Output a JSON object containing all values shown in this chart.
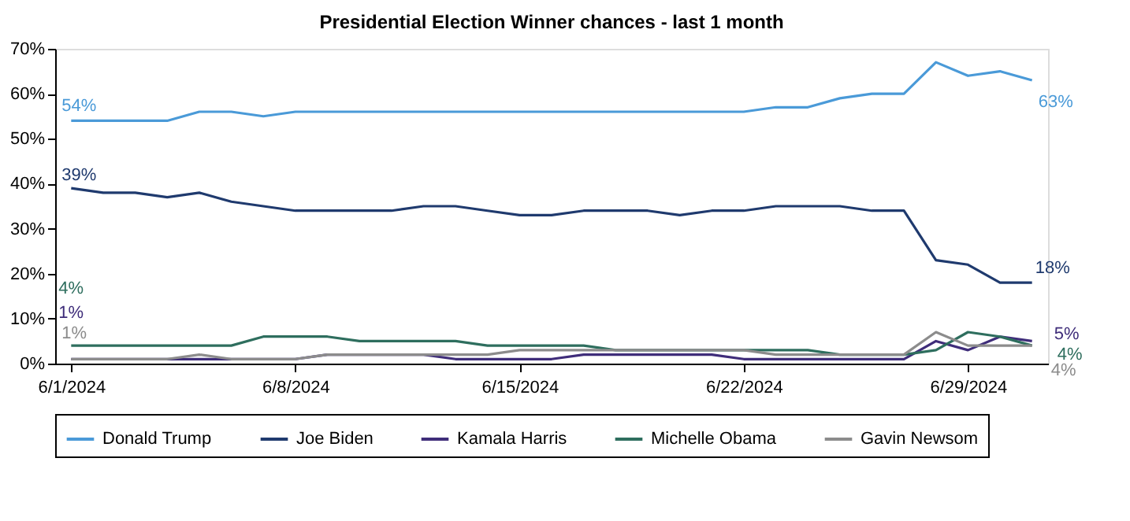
{
  "chart_data": {
    "type": "line",
    "title": "Presidential Election Winner chances - last 1 month",
    "x": [
      "2024-06-01",
      "2024-06-02",
      "2024-06-03",
      "2024-06-04",
      "2024-06-05",
      "2024-06-06",
      "2024-06-07",
      "2024-06-08",
      "2024-06-09",
      "2024-06-10",
      "2024-06-11",
      "2024-06-12",
      "2024-06-13",
      "2024-06-14",
      "2024-06-15",
      "2024-06-16",
      "2024-06-17",
      "2024-06-18",
      "2024-06-19",
      "2024-06-20",
      "2024-06-21",
      "2024-06-22",
      "2024-06-23",
      "2024-06-24",
      "2024-06-25",
      "2024-06-26",
      "2024-06-27",
      "2024-06-28",
      "2024-06-29",
      "2024-06-30",
      "2024-07-01"
    ],
    "series": [
      {
        "name": "Donald Trump",
        "color": "#4a9ad8",
        "values": [
          54,
          54,
          54,
          54,
          56,
          56,
          55,
          56,
          56,
          56,
          56,
          56,
          56,
          56,
          56,
          56,
          56,
          56,
          56,
          56,
          56,
          56,
          57,
          57,
          59,
          60,
          60,
          67,
          64,
          65,
          63
        ],
        "value_labels": [
          "54%",
          null,
          null,
          null,
          null,
          null,
          null,
          null,
          null,
          null,
          null,
          null,
          null,
          null,
          null,
          null,
          null,
          null,
          null,
          null,
          null,
          null,
          null,
          null,
          null,
          null,
          null,
          null,
          null,
          null,
          "63%"
        ]
      },
      {
        "name": "Joe Biden",
        "color": "#1f3a6e",
        "values": [
          39,
          38,
          38,
          37,
          38,
          36,
          35,
          34,
          34,
          34,
          34,
          35,
          35,
          34,
          33,
          33,
          34,
          34,
          34,
          33,
          34,
          34,
          35,
          35,
          35,
          34,
          34,
          23,
          22,
          18,
          18
        ],
        "value_labels": [
          "39%",
          null,
          null,
          null,
          null,
          null,
          null,
          null,
          null,
          null,
          null,
          null,
          null,
          null,
          null,
          null,
          null,
          null,
          null,
          null,
          null,
          null,
          null,
          null,
          null,
          null,
          null,
          null,
          null,
          null,
          "18%"
        ]
      },
      {
        "name": "Kamala Harris",
        "color": "#3f2d7a",
        "values": [
          1,
          1,
          1,
          1,
          1,
          1,
          1,
          1,
          2,
          2,
          2,
          2,
          1,
          1,
          1,
          1,
          2,
          2,
          2,
          2,
          2,
          1,
          1,
          1,
          1,
          1,
          1,
          5,
          3,
          6,
          5
        ],
        "value_labels": [
          "1%",
          null,
          null,
          null,
          null,
          null,
          null,
          null,
          null,
          null,
          null,
          null,
          null,
          null,
          null,
          null,
          null,
          null,
          null,
          null,
          null,
          null,
          null,
          null,
          null,
          null,
          null,
          null,
          null,
          null,
          "5%"
        ]
      },
      {
        "name": "Michelle Obama",
        "color": "#2e6e5e",
        "values": [
          4,
          4,
          4,
          4,
          4,
          4,
          6,
          6,
          6,
          5,
          5,
          5,
          5,
          4,
          4,
          4,
          4,
          3,
          3,
          3,
          3,
          3,
          3,
          3,
          2,
          2,
          2,
          3,
          7,
          6,
          4
        ],
        "value_labels": [
          "4%",
          null,
          null,
          null,
          null,
          null,
          null,
          null,
          null,
          null,
          null,
          null,
          null,
          null,
          null,
          null,
          null,
          null,
          null,
          null,
          null,
          null,
          null,
          null,
          null,
          null,
          null,
          null,
          null,
          null,
          "4%"
        ]
      },
      {
        "name": "Gavin Newsom",
        "color": "#8c8c8c",
        "values": [
          1,
          1,
          1,
          1,
          2,
          1,
          1,
          1,
          2,
          2,
          2,
          2,
          2,
          2,
          3,
          3,
          3,
          3,
          3,
          3,
          3,
          3,
          2,
          2,
          2,
          2,
          2,
          7,
          4,
          4,
          4
        ],
        "value_labels": [
          "1%",
          null,
          null,
          null,
          null,
          null,
          null,
          null,
          null,
          null,
          null,
          null,
          null,
          null,
          null,
          null,
          null,
          null,
          null,
          null,
          null,
          null,
          null,
          null,
          null,
          null,
          null,
          null,
          null,
          null,
          "4%"
        ]
      }
    ],
    "xlim": [
      "2024-05-31T12:00",
      "2024-07-01T12:00"
    ],
    "xticks": [
      {
        "value": "2024-06-01",
        "label": "6/1/2024"
      },
      {
        "value": "2024-06-08",
        "label": "6/8/2024"
      },
      {
        "value": "2024-06-15",
        "label": "6/15/2024"
      },
      {
        "value": "2024-06-22",
        "label": "6/22/2024"
      },
      {
        "value": "2024-06-29",
        "label": "6/29/2024"
      }
    ],
    "ylim": [
      0,
      70
    ],
    "yticks": [
      {
        "value": 0,
        "label": "0%"
      },
      {
        "value": 10,
        "label": "10%"
      },
      {
        "value": 20,
        "label": "20%"
      },
      {
        "value": 30,
        "label": "30%"
      },
      {
        "value": 40,
        "label": "40%"
      },
      {
        "value": 50,
        "label": "50%"
      },
      {
        "value": 60,
        "label": "60%"
      },
      {
        "value": 70,
        "label": "70%"
      }
    ],
    "grid": false,
    "legend": "bottom",
    "marker": "none",
    "line_style": "solid"
  }
}
